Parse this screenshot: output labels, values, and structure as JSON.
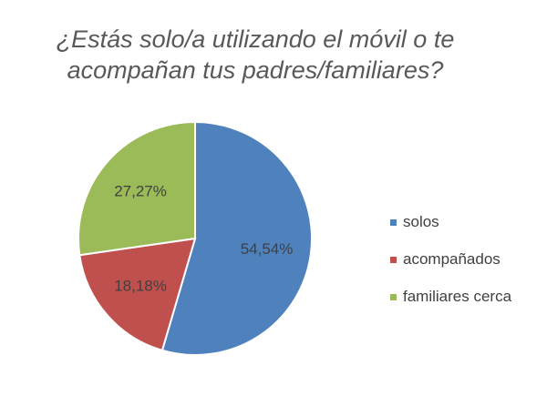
{
  "chart_data": {
    "type": "pie",
    "title": "¿Estás solo/a utilizando el móvil o te acompañan tus padres/familiares?",
    "title_lines": [
      "¿Estás solo/a utilizando el móvil o te",
      "acompañan tus padres/familiares?"
    ],
    "categories": [
      "solos",
      "acompañados",
      "familiares cerca"
    ],
    "values": [
      54.54,
      18.18,
      27.27
    ],
    "data_labels": [
      "54,54%",
      "18,18%",
      "27,27%"
    ],
    "colors": [
      "#4F81BD",
      "#C0504D",
      "#9BBB59"
    ],
    "legend_position": "right"
  }
}
